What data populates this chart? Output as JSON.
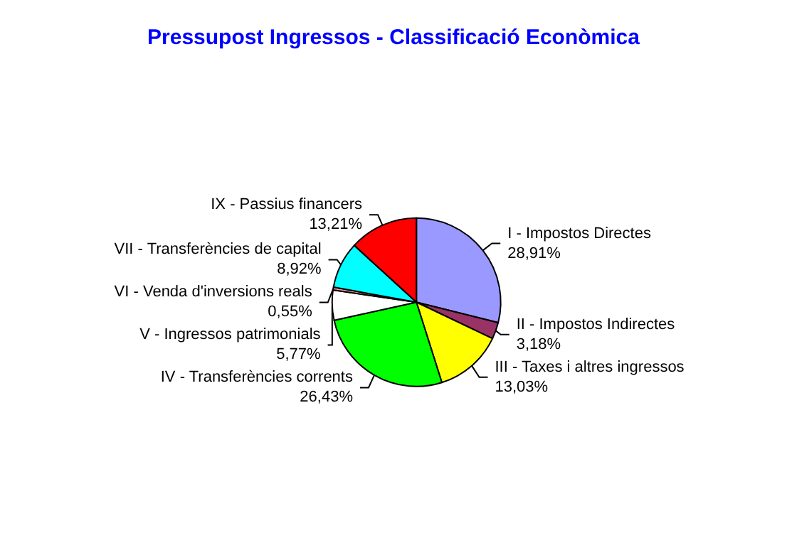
{
  "chart_data": {
    "type": "pie",
    "title": "Pressupost Ingressos - Classificació Econòmica",
    "categories": [
      "I - Impostos Directes",
      "II - Impostos Indirectes",
      "III - Taxes i altres ingressos",
      "IV - Transferències corrents",
      "V - Ingressos patrimonials",
      "VI - Venda d'inversions reals",
      "VII - Transferències de capital",
      "IX - Passius financers"
    ],
    "values": [
      28.91,
      3.18,
      13.03,
      26.43,
      5.77,
      0.55,
      8.92,
      13.21
    ],
    "colors": [
      "#9999ff",
      "#993366",
      "#ffff00",
      "#00ff00",
      "#ffffff",
      "#ff9999",
      "#00ffff",
      "#ff0000"
    ],
    "value_labels": [
      "28,91%",
      "3,18%",
      "13,03%",
      "26,43%",
      "5,77%",
      "0,55%",
      "8,92%",
      "13,21%"
    ]
  }
}
